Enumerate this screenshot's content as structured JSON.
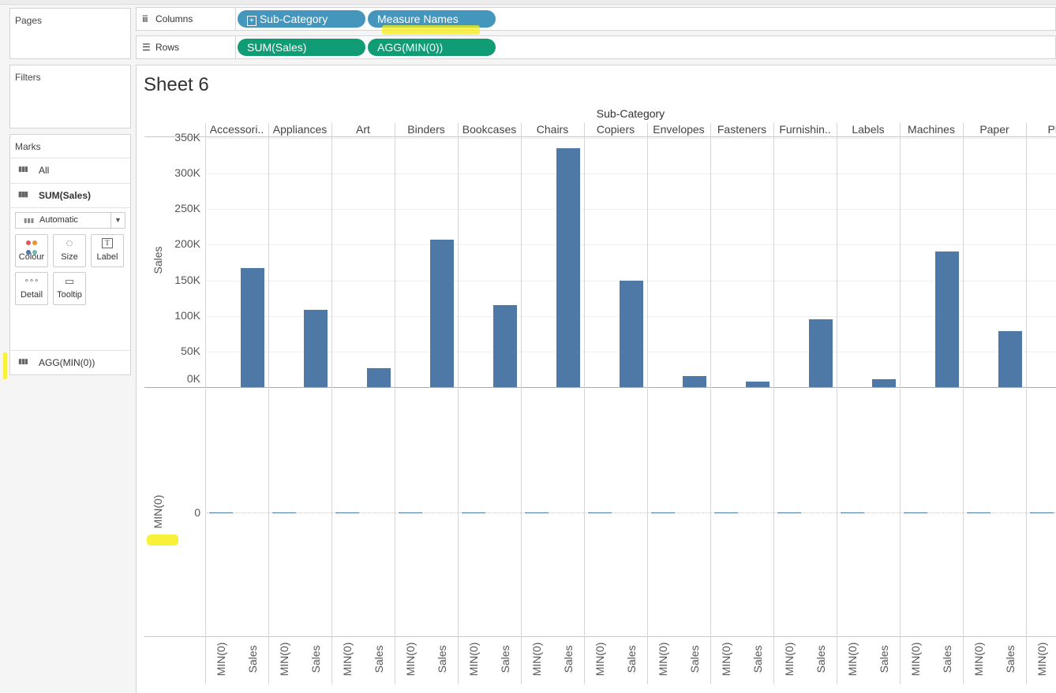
{
  "panels": {
    "pages": "Pages",
    "filters": "Filters",
    "marks": "Marks"
  },
  "shelves": {
    "columns": {
      "label": "Columns",
      "icon": "columns-icon",
      "pills": [
        "Sub-Category",
        "Measure Names"
      ]
    },
    "rows": {
      "label": "Rows",
      "icon": "rows-icon",
      "pills": [
        "SUM(Sales)",
        "AGG(MIN(0))"
      ]
    }
  },
  "marks": {
    "all": "All",
    "sum_sales": "SUM(Sales)",
    "mark_type": "Automatic",
    "buttons": [
      "Colour",
      "Size",
      "Label",
      "Detail",
      "Tooltip"
    ],
    "agg": "AGG(MIN(0))"
  },
  "sheet": {
    "title": "Sheet 6"
  },
  "colors": {
    "bar": "#4e79a7",
    "pill_blue": "#4596bd",
    "pill_green": "#109c74",
    "highlight": "#f7ee17"
  },
  "chart_data": {
    "type": "bar",
    "title": "Sheet 6",
    "column_header": "Sub-Category",
    "categories": [
      "Accessori..",
      "Appliances",
      "Art",
      "Binders",
      "Bookcases",
      "Chairs",
      "Copiers",
      "Envelopes",
      "Fasteners",
      "Furnishin..",
      "Labels",
      "Machines",
      "Paper",
      "Pho"
    ],
    "measures": [
      "MIN(0)",
      "Sales"
    ],
    "series": [
      {
        "name": "Sales",
        "values": [
          167000,
          108000,
          27000,
          207000,
          115000,
          336000,
          150000,
          16000,
          8000,
          95000,
          11000,
          190000,
          79000,
          null
        ]
      },
      {
        "name": "MIN(0)",
        "values": [
          0,
          0,
          0,
          0,
          0,
          0,
          0,
          0,
          0,
          0,
          0,
          0,
          0,
          0
        ]
      }
    ],
    "ylabel_top": "Sales",
    "ylabel_bottom": "MIN(0)",
    "yticks_top": [
      "350K",
      "300K",
      "250K",
      "200K",
      "150K",
      "100K",
      "50K",
      "0K"
    ],
    "yticks_top_values": [
      350000,
      300000,
      250000,
      200000,
      150000,
      100000,
      50000,
      0
    ],
    "yticks_bottom": [
      "0"
    ],
    "ylim_top": [
      0,
      350000
    ]
  }
}
